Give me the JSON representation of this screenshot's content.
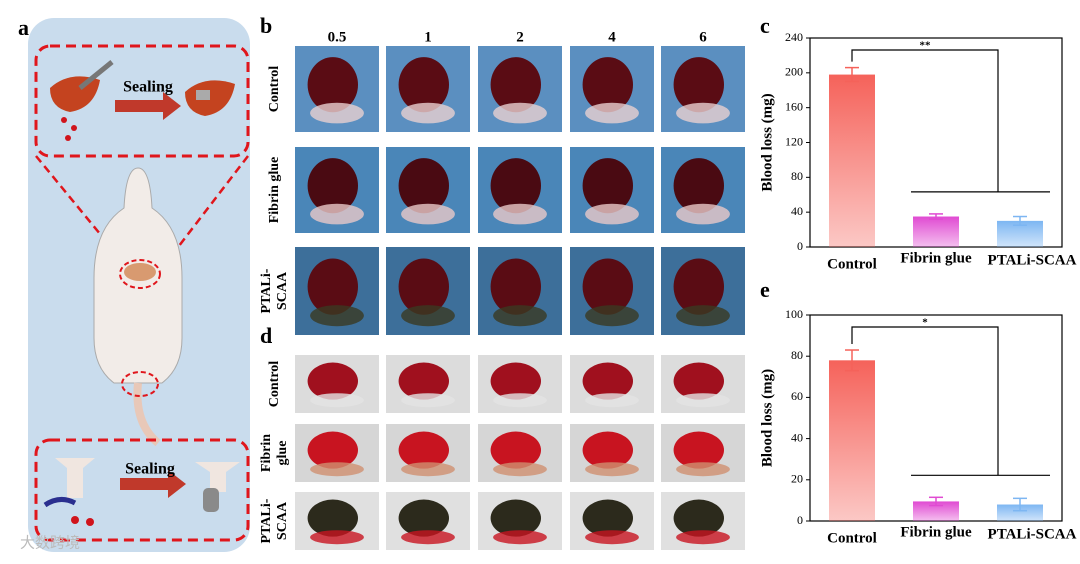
{
  "panel_labels": [
    "a",
    "b",
    "c",
    "d",
    "e"
  ],
  "figure_a": {
    "sealing_top": "Sealing",
    "sealing_bottom": "Sealing"
  },
  "figure_b": {
    "time_points": [
      0.5,
      1,
      2,
      4,
      6
    ],
    "rows": [
      [
        "Control"
      ],
      [
        "Fibrin glue"
      ],
      [
        "PTALi-",
        "SCAA"
      ]
    ]
  },
  "figure_d": {
    "rows": [
      [
        "Control"
      ],
      [
        "Fibrin",
        "glue"
      ],
      [
        "PTALi-",
        "SCAA"
      ]
    ]
  },
  "watermark": "大数跨境",
  "chart_data": [
    {
      "type": "bar",
      "ylabel": "Blood loss (mg)",
      "categories": [
        "Control",
        "Fibrin glue",
        "PTALi-SCAA"
      ],
      "values": [
        198,
        35,
        30
      ],
      "errors": [
        8,
        3,
        5
      ],
      "colors": [
        "#f5625a",
        "#e04ad2",
        "#7db6f2"
      ],
      "ylim": [
        0,
        240
      ],
      "yticks": [
        0,
        40,
        80,
        120,
        160,
        200,
        240
      ],
      "annotation": "**"
    },
    {
      "type": "bar",
      "ylabel": "Blood loss (mg)",
      "categories": [
        "Control",
        "Fibrin glue",
        "PTALi-SCAA"
      ],
      "values": [
        78,
        9.5,
        8
      ],
      "errors": [
        5,
        2,
        3
      ],
      "colors": [
        "#f5625a",
        "#e04ad2",
        "#7db6f2"
      ],
      "ylim": [
        0,
        100
      ],
      "yticks": [
        0,
        20,
        40,
        60,
        80,
        100
      ],
      "annotation": "*"
    }
  ]
}
